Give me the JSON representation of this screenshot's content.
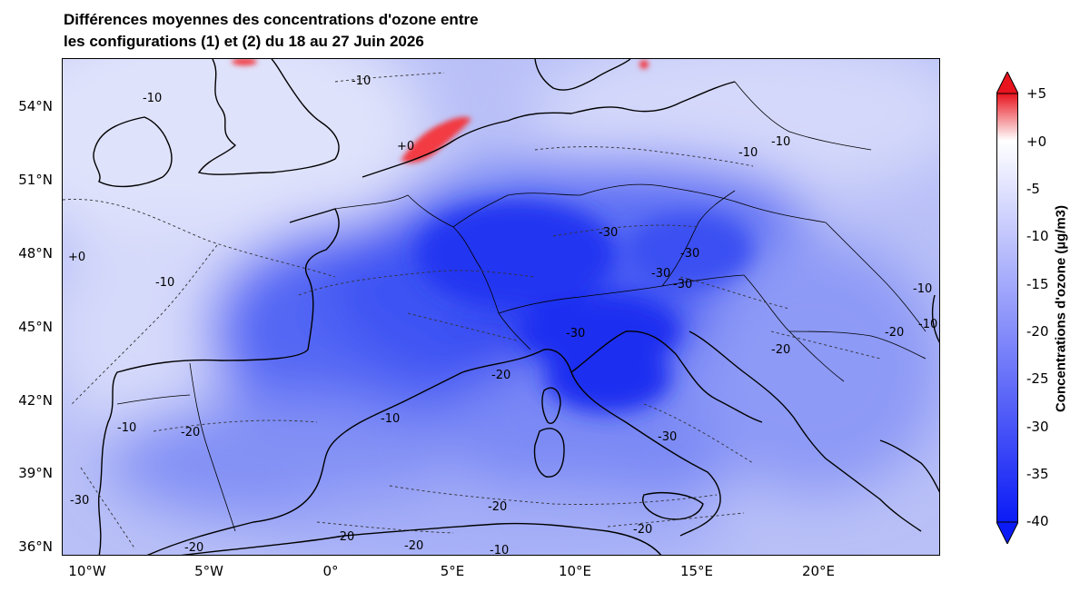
{
  "title": {
    "line1": "Différences moyennes des concentrations d'ozone entre",
    "line2": "les configurations (1) et (2) du 18 au 27 Juin 2026"
  },
  "map": {
    "lat_labels": [
      "54°N",
      "51°N",
      "48°N",
      "45°N",
      "42°N",
      "39°N",
      "36°N"
    ],
    "lon_labels": [
      "10°W",
      "5°W",
      "0°",
      "5°E",
      "10°E",
      "15°E",
      "20°E"
    ],
    "contour_labels": [
      "-10",
      "-10",
      "-10",
      "+0",
      "-10",
      "-10",
      "-30",
      "-30",
      "-30",
      "-30",
      "-10",
      "-10",
      "+0",
      "-10",
      "-20",
      "-30",
      "-20",
      "-20",
      "-30",
      "-20",
      "-20",
      "-20",
      "-20",
      "-20",
      "-10",
      "-20",
      "-10",
      "-30"
    ],
    "colors": {
      "strong_negative": "#0b1bf5",
      "neutral": "#ffffff",
      "positive": "#e8141e",
      "coastline": "#000000"
    }
  },
  "colorbar": {
    "label": "Concentrations d'ozone (µg/m3)",
    "ticks": [
      "+5",
      "+0",
      "-5",
      "-10",
      "-15",
      "-20",
      "-25",
      "-30",
      "-35",
      "-40"
    ],
    "colors": [
      "#e8141e",
      "#ffffff",
      "#0b1bf5"
    ]
  }
}
